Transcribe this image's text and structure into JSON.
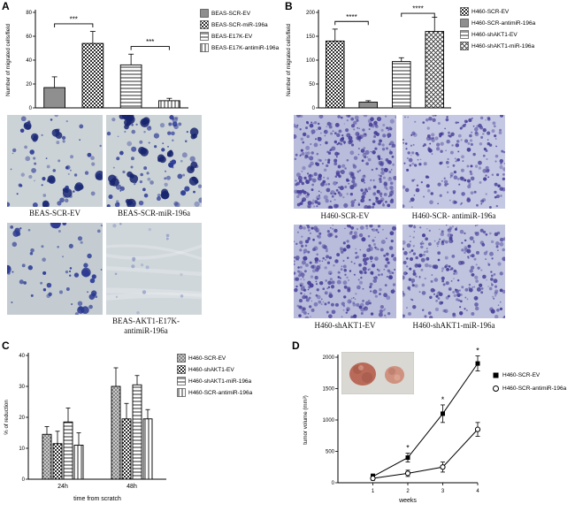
{
  "panels": {
    "A": "A",
    "B": "B",
    "C": "C",
    "D": "D"
  },
  "chart_data": [
    {
      "id": "A",
      "type": "bar",
      "title": "",
      "ylabel": "Number of migrated cells/field",
      "xlabel": "",
      "ylim": [
        0,
        80
      ],
      "yticks": [
        0,
        20,
        40,
        60,
        80
      ],
      "categories": [
        "BEAS-SCR-EV",
        "BEAS-SCR-miR-196a",
        "BEAS-E17K-EV",
        "BEAS-E17K-antimiR-196a"
      ],
      "values": [
        17,
        54,
        36,
        6
      ],
      "errors": [
        9,
        10,
        9,
        2
      ],
      "patterns": [
        "solid",
        "checker",
        "hlines",
        "vlines"
      ],
      "significance": [
        {
          "from": 0,
          "to": 1,
          "label": "***"
        },
        {
          "from": 2,
          "to": 3,
          "label": "***"
        }
      ],
      "legend_position": "right",
      "grid": false
    },
    {
      "id": "B",
      "type": "bar",
      "title": "",
      "ylabel": "Number of migrated cells/field",
      "xlabel": "",
      "ylim": [
        0,
        200
      ],
      "yticks": [
        0,
        50,
        100,
        150,
        200
      ],
      "categories": [
        "H460-SCR-EV",
        "H460-SCR-antimiR-196a",
        "H460-shAKT1-EV",
        "H460-shAKT1-miR-196a"
      ],
      "values": [
        140,
        12,
        97,
        160
      ],
      "errors": [
        25,
        3,
        8,
        30
      ],
      "patterns": [
        "checker",
        "solid",
        "hlines",
        "cross"
      ],
      "significance": [
        {
          "from": 0,
          "to": 1,
          "label": "****"
        },
        {
          "from": 2,
          "to": 3,
          "label": "****"
        }
      ],
      "legend_position": "right",
      "grid": false
    },
    {
      "id": "C",
      "type": "bar",
      "title": "",
      "ylabel": "% of reduction",
      "xlabel": "time from scratch",
      "ylim": [
        0,
        40
      ],
      "yticks": [
        0,
        10,
        20,
        30,
        40
      ],
      "groups": [
        "24h",
        "48h"
      ],
      "series": [
        {
          "name": "H460-SCR-EV",
          "pattern": "dots",
          "values": [
            14.5,
            30
          ],
          "errors": [
            2.5,
            6
          ]
        },
        {
          "name": "H460-shAKT1-EV",
          "pattern": "checker",
          "values": [
            11.5,
            19.5
          ],
          "errors": [
            4,
            5
          ]
        },
        {
          "name": "H460-shAKT1-miR-196a",
          "pattern": "hlines",
          "values": [
            18.5,
            30.5
          ],
          "errors": [
            4.5,
            3
          ]
        },
        {
          "name": "H460-SCR-antimiR-196a",
          "pattern": "vlines",
          "values": [
            11,
            19.5
          ],
          "errors": [
            4,
            3
          ]
        }
      ],
      "legend_position": "right",
      "grid": false
    },
    {
      "id": "D",
      "type": "line",
      "title": "",
      "ylabel": "tumor volume (mm³)",
      "xlabel": "weeks",
      "ylim": [
        0,
        2000
      ],
      "yticks": [
        0,
        500,
        1000,
        1500,
        2000
      ],
      "x": [
        1,
        2,
        3,
        4
      ],
      "xlim": [
        0,
        4
      ],
      "series": [
        {
          "name": "H460-SCR-EV",
          "marker": "filled-square",
          "values": [
            100,
            400,
            1100,
            1900
          ],
          "errors": [
            40,
            70,
            140,
            120
          ],
          "annotations": [
            "",
            "*",
            "*",
            "*"
          ]
        },
        {
          "name": "H460-SCR-antimiR-196a",
          "marker": "open-circle",
          "values": [
            70,
            150,
            250,
            850
          ],
          "errors": [
            30,
            50,
            80,
            110
          ],
          "annotations": [
            "",
            "",
            "",
            ""
          ]
        }
      ],
      "legend_position": "right",
      "grid": false
    }
  ],
  "micrographs": {
    "A": {
      "background": "#ccd3d7",
      "stain_color": "#2b3a95",
      "captions_top": [
        "BEAS-SCR-EV",
        "BEAS-SCR-miR-196a"
      ],
      "caption_bottom": [
        "BEAS-AKT1-E17K-",
        "antimiR-196a"
      ]
    },
    "B": {
      "background": "#b9bcdb",
      "stain_color": "#453c97",
      "captions_top": [
        "H460-SCR-EV",
        "H460-SCR- antimiR-196a"
      ],
      "captions_bottom": [
        "H460-shAKT1-EV",
        "H460-shAKT1-miR-196a"
      ]
    }
  },
  "inset_photo": {
    "background": "#d9d8d2",
    "colors": [
      "#b96a59",
      "#cf9280"
    ]
  }
}
